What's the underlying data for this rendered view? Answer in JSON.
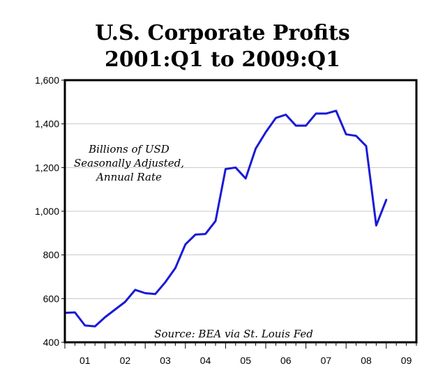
{
  "chart_data": {
    "type": "line",
    "title": "U.S. Corporate Profits",
    "subtitle": "2001:Q1 to 2009:Q1",
    "xlabel": "",
    "ylabel": "",
    "ylim": [
      400,
      1600
    ],
    "yticks": [
      400,
      600,
      800,
      1000,
      1200,
      1400,
      1600
    ],
    "ytick_labels": [
      "400",
      "600",
      "800",
      "1,000",
      "1,200",
      "1,400",
      "1,600"
    ],
    "xlim": [
      2001,
      2009.75
    ],
    "xtick_labels": [
      "01",
      "02",
      "03",
      "04",
      "05",
      "06",
      "07",
      "08",
      "09"
    ],
    "grid": true,
    "series_color": "#1a1ad6",
    "annotation_lines": [
      "Billions of USD",
      "Seasonally Adjusted,",
      "Annual Rate"
    ],
    "source": "Source: BEA via St. Louis Fed",
    "series": [
      {
        "x": [
          2001.0,
          2001.25,
          2001.5,
          2001.75,
          2002.0,
          2002.25,
          2002.5,
          2002.75,
          2003.0,
          2003.25,
          2003.5,
          2003.75,
          2004.0,
          2004.25,
          2004.5,
          2004.75,
          2005.0,
          2005.25,
          2005.5,
          2005.75,
          2006.0,
          2006.25,
          2006.5,
          2006.75,
          2007.0,
          2007.25,
          2007.5,
          2007.75,
          2008.0,
          2008.25,
          2008.5,
          2008.75,
          2009.0
        ],
        "values": [
          535,
          537,
          477,
          473,
          515,
          550,
          585,
          640,
          625,
          621,
          675,
          740,
          848,
          893,
          896,
          955,
          1193,
          1200,
          1150,
          1287,
          1362,
          1427,
          1442,
          1392,
          1392,
          1447,
          1447,
          1460,
          1352,
          1345,
          1298,
          935,
          1052
        ]
      }
    ]
  }
}
